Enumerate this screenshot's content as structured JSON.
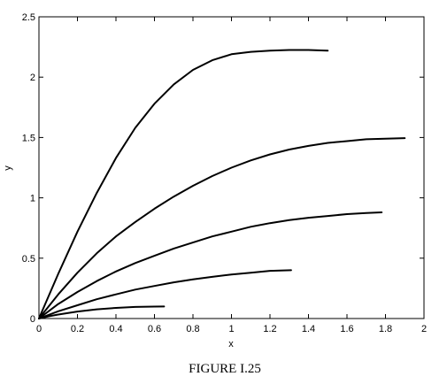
{
  "chart_data": {
    "type": "line",
    "title": "",
    "caption": "FIGURE I.25",
    "xlabel": "x",
    "ylabel": "y",
    "xlim": [
      0,
      2
    ],
    "ylim": [
      0,
      2.5
    ],
    "x_ticks": [
      "0",
      "0.2",
      "0.4",
      "0.6",
      "0.8",
      "1",
      "1.2",
      "1.4",
      "1.6",
      "1.8",
      "2"
    ],
    "y_ticks": [
      "0",
      "0.5",
      "1",
      "1.5",
      "2",
      "2.5"
    ],
    "grid": false,
    "legend": "none",
    "series": [
      {
        "x": [
          0,
          0.05,
          0.1,
          0.2,
          0.3,
          0.4,
          0.5,
          0.6,
          0.65
        ],
        "y": [
          0,
          0.018,
          0.033,
          0.058,
          0.076,
          0.088,
          0.096,
          0.099,
          0.1
        ]
      },
      {
        "x": [
          0,
          0.1,
          0.2,
          0.3,
          0.4,
          0.5,
          0.6,
          0.7,
          0.8,
          0.9,
          1.0,
          1.1,
          1.2,
          1.31
        ],
        "y": [
          0,
          0.06,
          0.11,
          0.16,
          0.2,
          0.24,
          0.27,
          0.3,
          0.325,
          0.345,
          0.365,
          0.38,
          0.395,
          0.4
        ]
      },
      {
        "x": [
          0,
          0.1,
          0.2,
          0.3,
          0.4,
          0.5,
          0.6,
          0.7,
          0.8,
          0.9,
          1.0,
          1.1,
          1.2,
          1.3,
          1.4,
          1.5,
          1.6,
          1.7,
          1.78
        ],
        "y": [
          0,
          0.12,
          0.22,
          0.31,
          0.39,
          0.46,
          0.52,
          0.58,
          0.63,
          0.68,
          0.72,
          0.76,
          0.79,
          0.815,
          0.835,
          0.85,
          0.865,
          0.875,
          0.88
        ]
      },
      {
        "x": [
          0,
          0.1,
          0.2,
          0.3,
          0.4,
          0.5,
          0.6,
          0.7,
          0.8,
          0.9,
          1.0,
          1.1,
          1.2,
          1.3,
          1.4,
          1.5,
          1.6,
          1.7,
          1.8,
          1.9
        ],
        "y": [
          0,
          0.2,
          0.38,
          0.54,
          0.68,
          0.8,
          0.91,
          1.01,
          1.1,
          1.18,
          1.25,
          1.31,
          1.36,
          1.4,
          1.43,
          1.455,
          1.47,
          1.485,
          1.49,
          1.495
        ]
      },
      {
        "x": [
          0,
          0.1,
          0.2,
          0.3,
          0.4,
          0.5,
          0.6,
          0.7,
          0.8,
          0.9,
          1.0,
          1.1,
          1.2,
          1.3,
          1.4,
          1.5
        ],
        "y": [
          0,
          0.37,
          0.72,
          1.04,
          1.33,
          1.58,
          1.78,
          1.94,
          2.06,
          2.14,
          2.19,
          2.21,
          2.22,
          2.225,
          2.225,
          2.22
        ]
      }
    ]
  }
}
